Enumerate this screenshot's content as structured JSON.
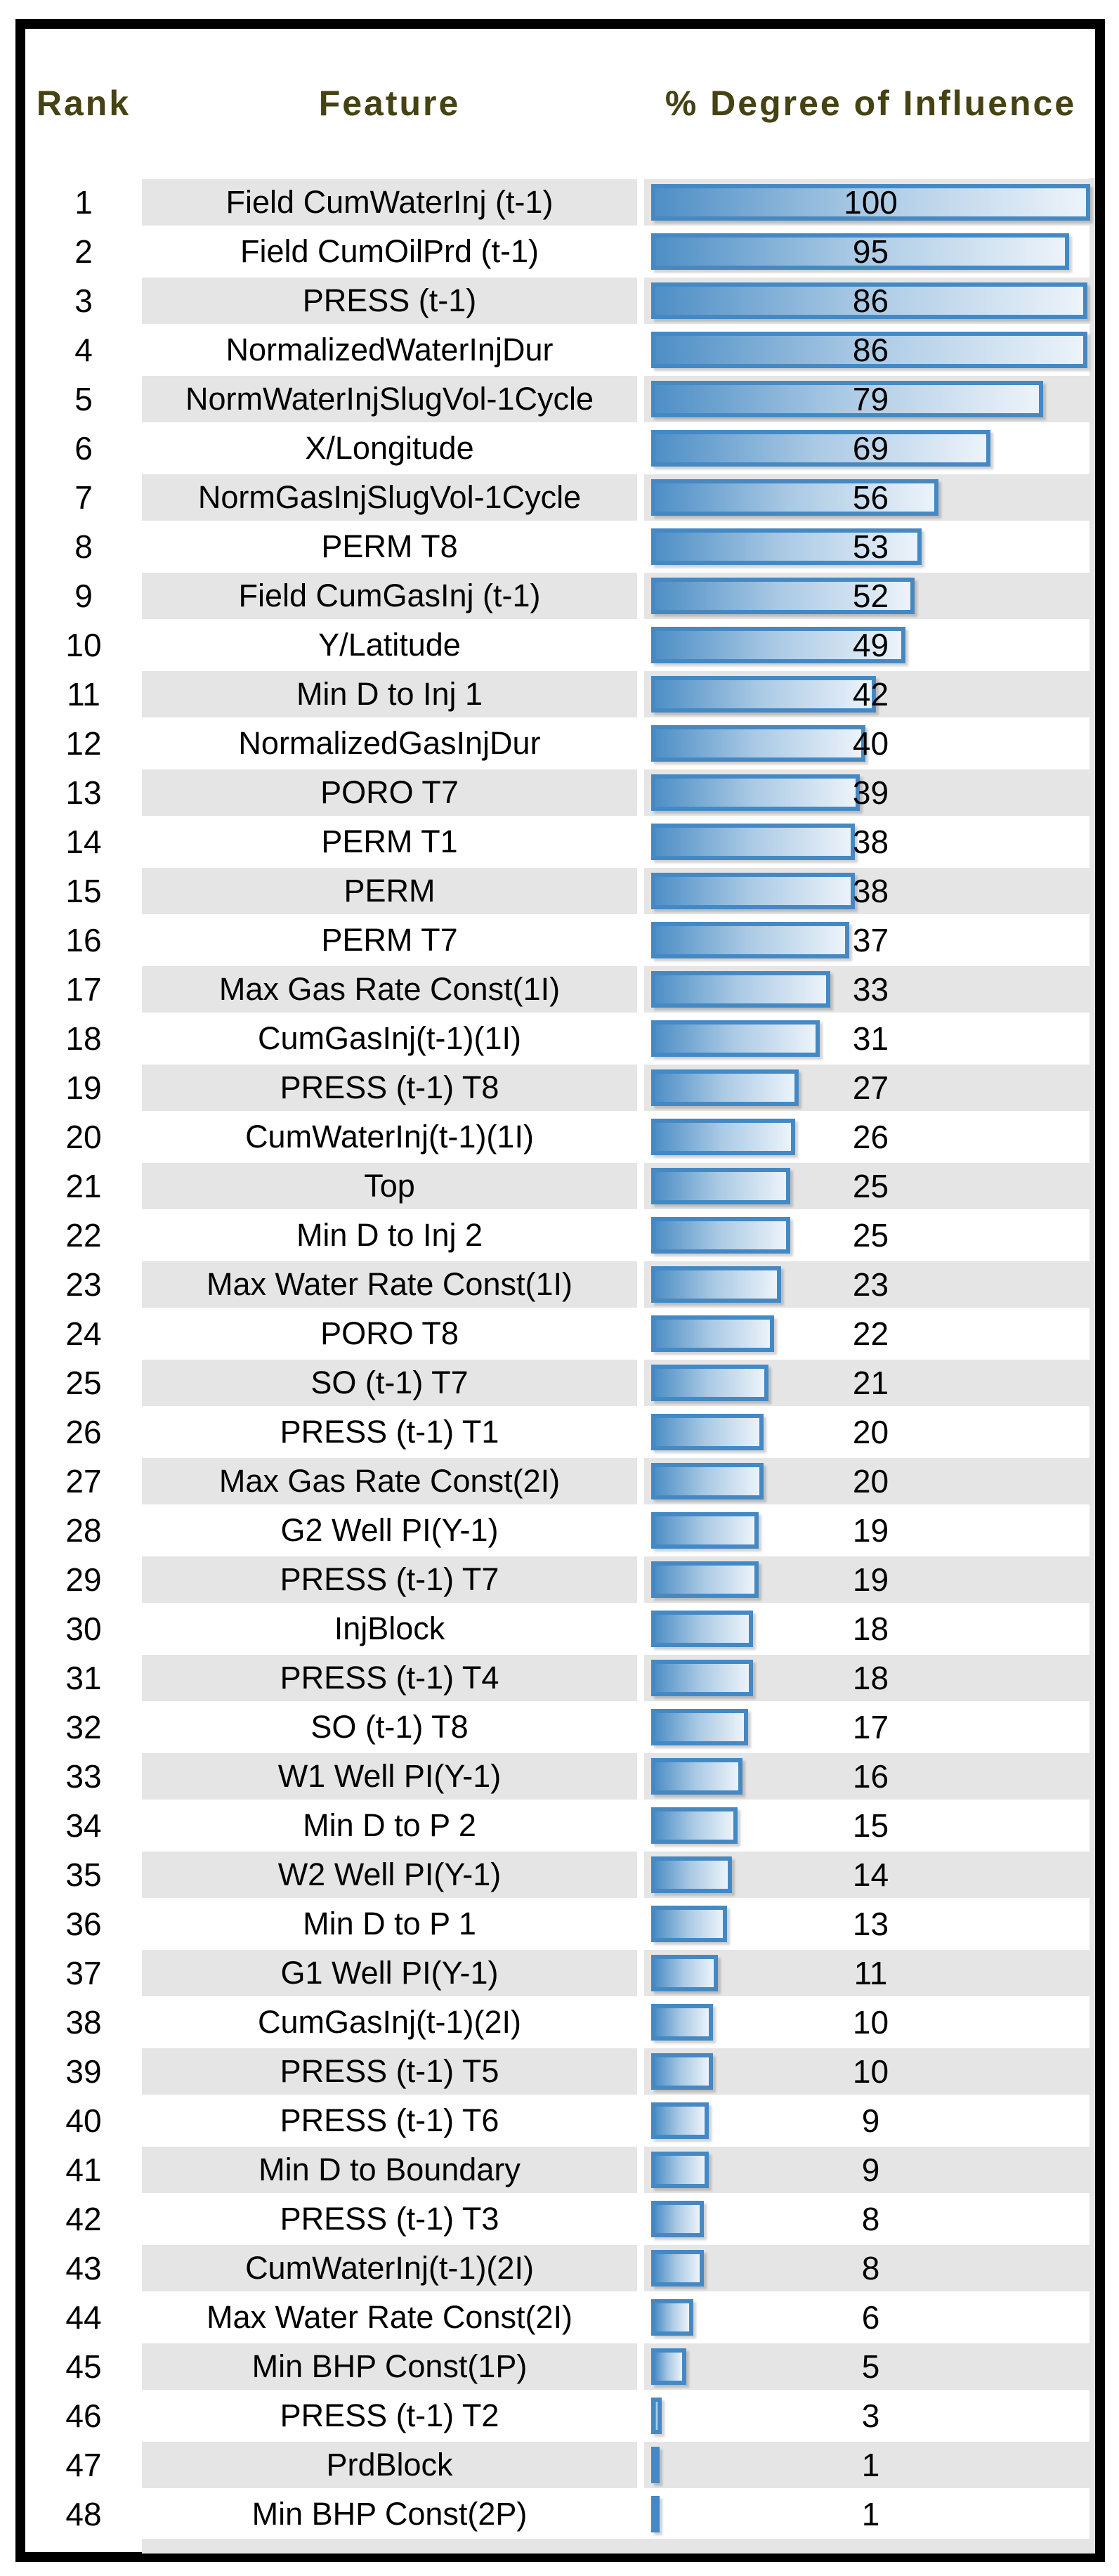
{
  "header": {
    "rank_label": "Rank",
    "feature_label": "Feature",
    "influence_label": "% Degree of Influence"
  },
  "colors": {
    "header_text": "#454213",
    "bar_border": "#4489c4",
    "bar_fill_start": "#4e8fc6",
    "bar_fill_end": "#ecf3fa",
    "row_stripe": "#e5e5e5",
    "frame": "#000000"
  },
  "chart_data": {
    "type": "bar",
    "orientation": "horizontal",
    "title": "% Degree of Influence",
    "columns": [
      "Rank",
      "Feature",
      "% Degree of Influence"
    ],
    "xlim": [
      0,
      100
    ],
    "grid": false,
    "legend": "none",
    "rows": [
      {
        "rank": 1,
        "feature": "Field CumWaterInj (t-1)",
        "value": 100,
        "bar_pct": 98.4
      },
      {
        "rank": 2,
        "feature": "Field CumOilPrd (t-1)",
        "value": 95,
        "bar_pct": 93.8
      },
      {
        "rank": 3,
        "feature": "PRESS (t-1)",
        "value": 86,
        "bar_pct": 97.8
      },
      {
        "rank": 4,
        "feature": "NormalizedWaterInjDur",
        "value": 86,
        "bar_pct": 97.8
      },
      {
        "rank": 5,
        "feature": "NormWaterInjSlugVol-1Cycle",
        "value": 79,
        "bar_pct": 88.0
      },
      {
        "rank": 6,
        "feature": "X/Longitude",
        "value": 69,
        "bar_pct": 76.5
      },
      {
        "rank": 7,
        "feature": "NormGasInjSlugVol-1Cycle",
        "value": 56,
        "bar_pct": 65.0
      },
      {
        "rank": 8,
        "feature": "PERM T8",
        "value": 53,
        "bar_pct": 61.2
      },
      {
        "rank": 9,
        "feature": "Field CumGasInj (t-1)",
        "value": 52,
        "bar_pct": 59.7
      },
      {
        "rank": 10,
        "feature": "Y/Latitude",
        "value": 49,
        "bar_pct": 57.7
      },
      {
        "rank": 11,
        "feature": "Min D to Inj 1",
        "value": 42,
        "bar_pct": 51.2
      },
      {
        "rank": 12,
        "feature": "NormalizedGasInjDur",
        "value": 40,
        "bar_pct": 48.8
      },
      {
        "rank": 13,
        "feature": "PORO T7",
        "value": 39,
        "bar_pct": 47.6
      },
      {
        "rank": 14,
        "feature": "PERM T1",
        "value": 38,
        "bar_pct": 46.5
      },
      {
        "rank": 15,
        "feature": "PERM",
        "value": 38,
        "bar_pct": 46.5
      },
      {
        "rank": 16,
        "feature": "PERM T7",
        "value": 37,
        "bar_pct": 45.3
      },
      {
        "rank": 17,
        "feature": "Max Gas Rate Const(1I)",
        "value": 33,
        "bar_pct": 41.1
      },
      {
        "rank": 18,
        "feature": "CumGasInj(t-1)(1I)",
        "value": 31,
        "bar_pct": 38.8
      },
      {
        "rank": 19,
        "feature": "PRESS (t-1) T8",
        "value": 27,
        "bar_pct": 34.1
      },
      {
        "rank": 20,
        "feature": "CumWaterInj(t-1)(1I)",
        "value": 26,
        "bar_pct": 33.3
      },
      {
        "rank": 21,
        "feature": "Top",
        "value": 25,
        "bar_pct": 32.2
      },
      {
        "rank": 22,
        "feature": "Min D to Inj 2",
        "value": 25,
        "bar_pct": 32.2
      },
      {
        "rank": 23,
        "feature": "Max Water Rate Const(1I)",
        "value": 23,
        "bar_pct": 30.2
      },
      {
        "rank": 24,
        "feature": "PORO T8",
        "value": 22,
        "bar_pct": 28.7
      },
      {
        "rank": 25,
        "feature": "SO (t-1) T7",
        "value": 21,
        "bar_pct": 27.4
      },
      {
        "rank": 26,
        "feature": "PRESS (t-1) T1",
        "value": 20,
        "bar_pct": 26.4
      },
      {
        "rank": 27,
        "feature": "Max Gas Rate Const(2I)",
        "value": 20,
        "bar_pct": 26.4
      },
      {
        "rank": 28,
        "feature": "G2 Well PI(Y-1)",
        "value": 19,
        "bar_pct": 25.3
      },
      {
        "rank": 29,
        "feature": "PRESS (t-1) T7",
        "value": 19,
        "bar_pct": 25.3
      },
      {
        "rank": 30,
        "feature": "InjBlock",
        "value": 18,
        "bar_pct": 24.0
      },
      {
        "rank": 31,
        "feature": "PRESS (t-1) T4",
        "value": 18,
        "bar_pct": 24.0
      },
      {
        "rank": 32,
        "feature": "SO (t-1) T8",
        "value": 17,
        "bar_pct": 22.9
      },
      {
        "rank": 33,
        "feature": "W1 Well PI(Y-1)",
        "value": 16,
        "bar_pct": 21.7
      },
      {
        "rank": 34,
        "feature": "Min D to P 2",
        "value": 15,
        "bar_pct": 20.6
      },
      {
        "rank": 35,
        "feature": "W2 Well PI(Y-1)",
        "value": 14,
        "bar_pct": 19.4
      },
      {
        "rank": 36,
        "feature": "Min D to P 1",
        "value": 13,
        "bar_pct": 18.3
      },
      {
        "rank": 37,
        "feature": "G1 Well PI(Y-1)",
        "value": 11,
        "bar_pct": 16.3
      },
      {
        "rank": 38,
        "feature": "CumGasInj(t-1)(2I)",
        "value": 10,
        "bar_pct": 15.2
      },
      {
        "rank": 39,
        "feature": "PRESS (t-1) T5",
        "value": 10,
        "bar_pct": 15.2
      },
      {
        "rank": 40,
        "feature": "PRESS (t-1) T6",
        "value": 9,
        "bar_pct": 14.3
      },
      {
        "rank": 41,
        "feature": "Min D to Boundary",
        "value": 9,
        "bar_pct": 14.3
      },
      {
        "rank": 42,
        "feature": "PRESS (t-1) T3",
        "value": 8,
        "bar_pct": 13.2
      },
      {
        "rank": 43,
        "feature": "CumWaterInj(t-1)(2I)",
        "value": 8,
        "bar_pct": 13.2
      },
      {
        "rank": 44,
        "feature": "Max Water Rate Const(2I)",
        "value": 6,
        "bar_pct": 10.9
      },
      {
        "rank": 45,
        "feature": "Min BHP Const(1P)",
        "value": 5,
        "bar_pct": 9.3
      },
      {
        "rank": 46,
        "feature": "PRESS (t-1) T2",
        "value": 3,
        "bar_pct": 3.8
      },
      {
        "rank": 47,
        "feature": "PrdBlock",
        "value": 1,
        "bar_pct": 1.6
      },
      {
        "rank": 48,
        "feature": "Min BHP Const(2P)",
        "value": 1,
        "bar_pct": 1.6
      }
    ]
  }
}
